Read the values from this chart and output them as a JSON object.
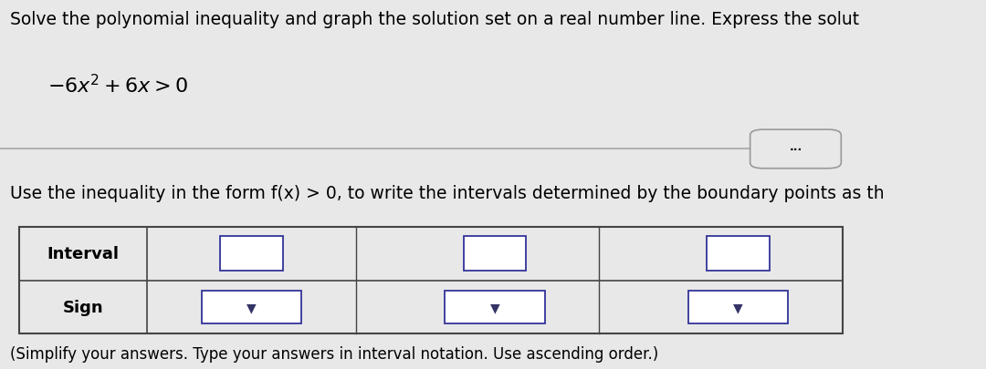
{
  "bg_color": "#e8e8e8",
  "title_line1": "Solve the polynomial inequality and graph the solution set on a real number line. Express the solut",
  "footnote": "(Simplify your answers. Type your answers in interval notation. Use ascending order.)",
  "instruction": "Use the inequality in the form f(x) > 0, to write the intervals determined by the boundary points as th",
  "title_fontsize": 13.5,
  "eq_fontsize": 16,
  "instr_fontsize": 13.5,
  "table_fontsize": 13,
  "footnote_fontsize": 12,
  "input_box_color": "#ffffff",
  "input_box_border": "#333399",
  "dropdown_arrow_color": "#333366",
  "separator_color": "#aaaaaa",
  "table_border_color": "#444444"
}
